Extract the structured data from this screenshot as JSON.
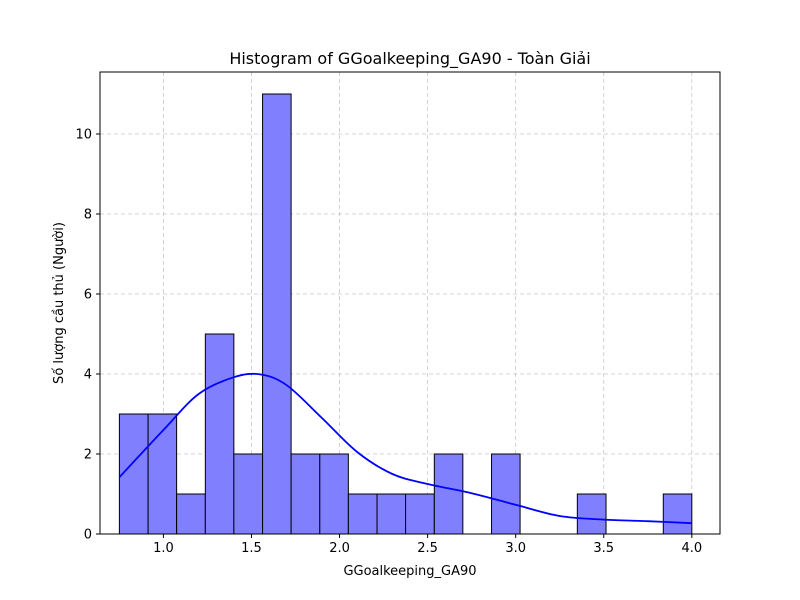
{
  "chart_data": {
    "type": "bar",
    "title": "Histogram of GGoalkeeping_GA90 - Toàn Giải",
    "xlabel": "GGoalkeeping_GA90",
    "ylabel": "Số lượng cầu thủ (Người)",
    "xlim": [
      0.64,
      4.16
    ],
    "ylim": [
      0,
      11.55
    ],
    "xticks": [
      "1.0",
      "1.5",
      "2.0",
      "2.5",
      "3.0",
      "3.5",
      "4.0"
    ],
    "yticks": [
      "0",
      "2",
      "4",
      "6",
      "8",
      "10"
    ],
    "grid": true,
    "bin_edges": [
      0.75,
      0.913,
      1.075,
      1.238,
      1.4,
      1.563,
      1.725,
      1.888,
      2.05,
      2.213,
      2.375,
      2.538,
      2.7,
      2.863,
      3.025,
      3.188,
      3.35,
      3.513,
      3.675,
      3.838,
      4.0
    ],
    "counts": [
      3,
      3,
      1,
      5,
      2,
      11,
      2,
      2,
      1,
      1,
      1,
      2,
      0,
      2,
      0,
      0,
      1,
      0,
      0,
      1
    ],
    "bar_color": "#8080ff",
    "kde": {
      "color": "#0000ff",
      "x": [
        0.75,
        1.0,
        1.2,
        1.4,
        1.55,
        1.7,
        1.9,
        2.1,
        2.3,
        2.5,
        2.75,
        3.0,
        3.25,
        3.5,
        3.75,
        4.0
      ],
      "y": [
        1.42,
        2.6,
        3.5,
        3.92,
        3.99,
        3.72,
        2.9,
        2.05,
        1.5,
        1.25,
        1.02,
        0.73,
        0.45,
        0.36,
        0.32,
        0.27
      ]
    }
  }
}
